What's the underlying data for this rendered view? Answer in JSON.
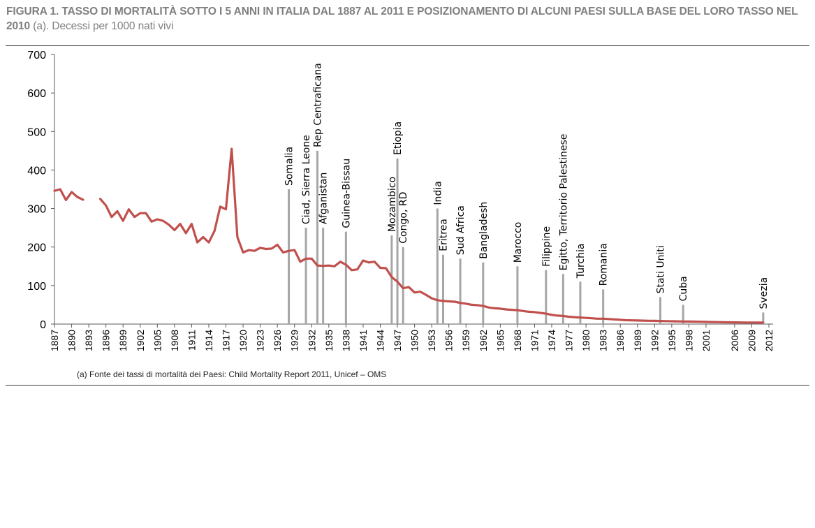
{
  "title": {
    "bold_part": "FIGURA 1. TASSO DI MORTALITÀ SOTTO I 5 ANNI IN ITALIA DAL 1887 AL 2011 E POSIZIONAMENTO DI ALCUNI PAESI SULLA BASE DEL LORO TASSO NEL 2010",
    "plain_part": " (a). Decessi per 1000 nati vivi"
  },
  "footnote": "(a)  Fonte dei tassi di mortalità dei Paesi: Child Mortality Report 2011, Unicef – OMS",
  "colors": {
    "line": "#c0504d",
    "bars": "#a6a6a6",
    "axis": "#595959",
    "title": "#7f7f7f"
  },
  "chart_data": {
    "type": "line",
    "title": "",
    "xlabel": "",
    "ylabel": "",
    "ylim": [
      0,
      700
    ],
    "yticks": [
      0,
      100,
      200,
      300,
      400,
      500,
      600,
      700
    ],
    "xlim": [
      1887,
      2012
    ],
    "xticks": [
      "1887",
      "1890",
      "1893",
      "1896",
      "1899",
      "1902",
      "1905",
      "1908",
      "1911",
      "1914",
      "1917",
      "1920",
      "1923",
      "1926",
      "1929",
      "1932",
      "1935",
      "1938",
      "1941",
      "1944",
      "1947",
      "1950",
      "1953",
      "1956",
      "1959",
      "1962",
      "1965",
      "1968",
      "1971",
      "1974",
      "1977",
      "1980",
      "1983",
      "1986",
      "1989",
      "1992",
      "1995",
      "1998",
      "2001",
      "2006",
      "2009",
      "2012"
    ],
    "grid": false,
    "legend": "none",
    "series": [
      {
        "segments": [
          [
            [
              1887,
              346
            ],
            [
              1888,
              350
            ],
            [
              1889,
              322
            ],
            [
              1890,
              343
            ],
            [
              1891,
              330
            ],
            [
              1892,
              323
            ]
          ],
          [
            [
              1895,
              325
            ],
            [
              1896,
              308
            ],
            [
              1897,
              278
            ],
            [
              1898,
              293
            ],
            [
              1899,
              268
            ],
            [
              1900,
              298
            ],
            [
              1901,
              278
            ],
            [
              1902,
              288
            ],
            [
              1903,
              288
            ],
            [
              1904,
              266
            ],
            [
              1905,
              272
            ],
            [
              1906,
              268
            ],
            [
              1907,
              258
            ],
            [
              1908,
              244
            ],
            [
              1909,
              260
            ],
            [
              1910,
              236
            ],
            [
              1911,
              260
            ],
            [
              1912,
              212
            ],
            [
              1913,
              226
            ],
            [
              1914,
              212
            ],
            [
              1915,
              242
            ],
            [
              1916,
              305
            ],
            [
              1917,
              298
            ],
            [
              1918,
              455
            ],
            [
              1919,
              226
            ],
            [
              1920,
              186
            ],
            [
              1921,
              192
            ],
            [
              1922,
              190
            ],
            [
              1923,
              198
            ],
            [
              1924,
              195
            ],
            [
              1925,
              196
            ],
            [
              1926,
              206
            ],
            [
              1927,
              186
            ],
            [
              1928,
              190
            ],
            [
              1929,
              192
            ],
            [
              1930,
              162
            ],
            [
              1931,
              170
            ],
            [
              1932,
              170
            ],
            [
              1933,
              152
            ],
            [
              1934,
              151
            ],
            [
              1935,
              152
            ],
            [
              1936,
              150
            ],
            [
              1937,
              162
            ],
            [
              1938,
              154
            ],
            [
              1939,
              140
            ],
            [
              1940,
              142
            ],
            [
              1941,
              165
            ],
            [
              1942,
              160
            ],
            [
              1943,
              162
            ],
            [
              1944,
              146
            ],
            [
              1945,
              145
            ],
            [
              1946,
              122
            ],
            [
              1947,
              110
            ],
            [
              1948,
              93
            ],
            [
              1949,
              96
            ],
            [
              1950,
              82
            ],
            [
              1951,
              84
            ],
            [
              1952,
              76
            ],
            [
              1953,
              67
            ],
            [
              1954,
              62
            ],
            [
              1955,
              60
            ],
            [
              1956,
              59
            ],
            [
              1957,
              58
            ],
            [
              1958,
              55
            ],
            [
              1959,
              53
            ],
            [
              1960,
              50
            ],
            [
              1961,
              49
            ],
            [
              1962,
              47
            ],
            [
              1963,
              43
            ],
            [
              1964,
              41
            ],
            [
              1965,
              40
            ],
            [
              1966,
              38
            ],
            [
              1967,
              37
            ],
            [
              1968,
              36
            ],
            [
              1969,
              34
            ],
            [
              1970,
              32
            ],
            [
              1971,
              31
            ],
            [
              1972,
              29
            ],
            [
              1973,
              27
            ],
            [
              1974,
              24
            ],
            [
              1975,
              22
            ],
            [
              1976,
              21
            ],
            [
              1977,
              19
            ],
            [
              1978,
              18
            ],
            [
              1979,
              17
            ],
            [
              1980,
              16
            ],
            [
              1981,
              15
            ],
            [
              1982,
              14
            ],
            [
              1983,
              14
            ],
            [
              1984,
              13
            ],
            [
              1985,
              12
            ],
            [
              1986,
              11
            ],
            [
              1987,
              10
            ],
            [
              1988,
              9.6
            ],
            [
              1989,
              9.2
            ],
            [
              1990,
              8.8
            ],
            [
              1991,
              8.6
            ],
            [
              1992,
              8.3
            ],
            [
              1993,
              8
            ],
            [
              1994,
              7.6
            ],
            [
              1995,
              7.3
            ],
            [
              1996,
              7
            ],
            [
              1997,
              6.8
            ],
            [
              1998,
              6.6
            ],
            [
              1999,
              6.3
            ],
            [
              2000,
              6
            ],
            [
              2001,
              5.6
            ],
            [
              2002,
              5.3
            ],
            [
              2003,
              5
            ],
            [
              2004,
              4.8
            ],
            [
              2005,
              4.5
            ],
            [
              2006,
              4.3
            ],
            [
              2007,
              4.1
            ],
            [
              2008,
              4
            ],
            [
              2009,
              3.9
            ],
            [
              2010,
              3.9
            ],
            [
              2011,
              3.8
            ]
          ]
        ]
      }
    ],
    "country_bars": [
      {
        "label": "Somalia",
        "x": 1928,
        "value": 350
      },
      {
        "label": "Ciad, Sierra Leone",
        "x": 1931,
        "value": 250
      },
      {
        "label": "Rep Centraficana",
        "x": 1933,
        "value": 450
      },
      {
        "label": "Afganistan",
        "x": 1934,
        "value": 250
      },
      {
        "label": "Guinea-Bissau",
        "x": 1938,
        "value": 240
      },
      {
        "label": "Mozambico",
        "x": 1946,
        "value": 230
      },
      {
        "label": "Etiopia",
        "x": 1947,
        "value": 430
      },
      {
        "label": "Congo, RD",
        "x": 1948,
        "value": 200
      },
      {
        "label": "India",
        "x": 1954,
        "value": 300
      },
      {
        "label": "Eritrea",
        "x": 1955,
        "value": 180
      },
      {
        "label": "Sud Africa",
        "x": 1958,
        "value": 170
      },
      {
        "label": "Bangladesh",
        "x": 1962,
        "value": 160
      },
      {
        "label": "Marocco",
        "x": 1968,
        "value": 150
      },
      {
        "label": "Filippine",
        "x": 1973,
        "value": 140
      },
      {
        "label": "Egitto, Territorio Palestinese",
        "x": 1976,
        "value": 130
      },
      {
        "label": "Turchia",
        "x": 1979,
        "value": 110
      },
      {
        "label": "Romania",
        "x": 1983,
        "value": 90
      },
      {
        "label": "Stati Uniti",
        "x": 1993,
        "value": 70
      },
      {
        "label": "Cuba",
        "x": 1997,
        "value": 50
      },
      {
        "label": "Svezia",
        "x": 2011,
        "value": 30
      }
    ]
  }
}
